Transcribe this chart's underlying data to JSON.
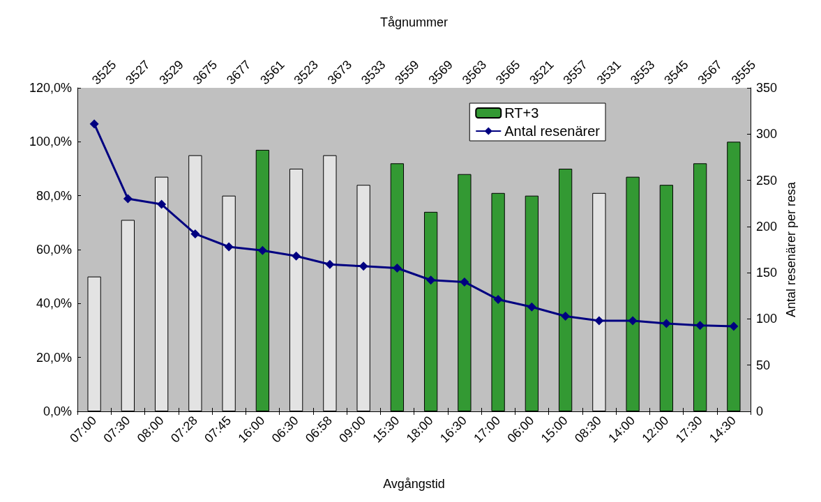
{
  "chart_data": {
    "type": "bar",
    "xlabel": "Avgångstid",
    "x2label": "Tågnummer",
    "y2label": "Antal resenärer per resa",
    "categories": [
      "07:00",
      "07:30",
      "08:00",
      "07:28",
      "07:45",
      "16:00",
      "06:30",
      "06:58",
      "09:00",
      "15:30",
      "18:00",
      "16:30",
      "17:00",
      "06:00",
      "15:00",
      "08:30",
      "14:00",
      "12:00",
      "17:30",
      "14:30"
    ],
    "annotations": [
      "3525",
      "3527",
      "3529",
      "3675",
      "3677",
      "3561",
      "3523",
      "3673",
      "3533",
      "3559",
      "3569",
      "3563",
      "3565",
      "3521",
      "3557",
      "3531",
      "3553",
      "3545",
      "3567",
      "3555"
    ],
    "stacked": true,
    "series": [
      {
        "name": "RT+3",
        "color": "#339933",
        "values": [
          null,
          null,
          null,
          null,
          null,
          97,
          null,
          null,
          null,
          92,
          74,
          88,
          81,
          80,
          90,
          null,
          87,
          84,
          92,
          100
        ]
      },
      {
        "color": "#e3e3e3",
        "values": [
          50,
          71,
          87,
          95,
          80,
          null,
          90,
          95,
          84,
          null,
          null,
          null,
          null,
          null,
          null,
          81,
          null,
          null,
          null,
          null
        ]
      },
      {
        "type": "line",
        "name": "Antal resenärer",
        "color": "#000080",
        "axis": "y2",
        "values": [
          311,
          230,
          224,
          192,
          178,
          174,
          168,
          159,
          157,
          155,
          142,
          140,
          121,
          113,
          103,
          98,
          98,
          95,
          93,
          92
        ]
      }
    ],
    "ylim": [
      0,
      120
    ],
    "yticks": [
      {
        "value": 0,
        "label": "0,0%"
      },
      {
        "value": 20,
        "label": "20,0%"
      },
      {
        "value": 40,
        "label": "40,0%"
      },
      {
        "value": 60,
        "label": "60,0%"
      },
      {
        "value": 80,
        "label": "80,0%"
      },
      {
        "value": 100,
        "label": "100,0%"
      },
      {
        "value": 120,
        "label": "120,0%"
      }
    ],
    "y2lim": [
      0,
      350
    ],
    "y2ticks": [
      0,
      50,
      100,
      150,
      200,
      250,
      300,
      350
    ],
    "grid": false,
    "legend": "top right",
    "marker": "diamond",
    "line_style": "solid"
  }
}
